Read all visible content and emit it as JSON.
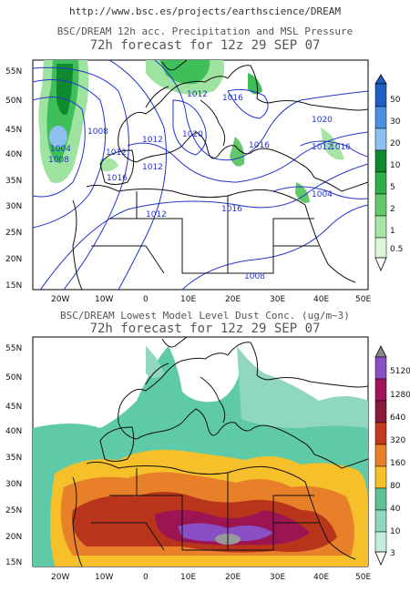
{
  "url": "http://www.bsc.es/projects/earthscience/DREAM",
  "panels": [
    {
      "id": "precip",
      "title_line1": "BSC/DREAM 12h acc. Precipitation and MSL Pressure",
      "title_line2": "72h forecast for 12z 29 SEP 07",
      "lat_labels": [
        "55N",
        "50N",
        "45N",
        "40N",
        "35N",
        "30N",
        "25N",
        "20N",
        "15N"
      ],
      "lon_labels": [
        "20W",
        "10W",
        "0",
        "10E",
        "20E",
        "30E",
        "40E",
        "50E"
      ],
      "colorbar_labels": [
        "50",
        "30",
        "20",
        "10",
        "5",
        "2",
        "1",
        "0.5"
      ],
      "colorbar_colors": [
        "#1f5fc4",
        "#4c8fe0",
        "#8ec0ef",
        "#0f8a2e",
        "#2fb04a",
        "#63c96b",
        "#a8e4a3",
        "#dff5da"
      ],
      "isobar_labels": [
        "1004",
        "1008",
        "1012",
        "1016",
        "1020",
        "1012",
        "1016",
        "1012",
        "1012",
        "1016",
        "1020",
        "1004",
        "1008",
        "1012",
        "1016",
        "1012",
        "1016",
        "1008"
      ],
      "isobar_color": "#2233cc"
    },
    {
      "id": "dust",
      "title_line1": "BSC/DREAM Lowest Model Level Dust Conc. (ug/m~3)",
      "title_line2": "72h forecast for 12z 29 SEP 07",
      "lat_labels": [
        "55N",
        "50N",
        "45N",
        "40N",
        "35N",
        "30N",
        "25N",
        "20N",
        "15N"
      ],
      "lon_labels": [
        "20W",
        "10W",
        "0",
        "10E",
        "20E",
        "30E",
        "40E",
        "50E"
      ],
      "colorbar_labels": [
        "5120",
        "1280",
        "640",
        "320",
        "160",
        "80",
        "40",
        "10",
        "3"
      ],
      "colorbar_colors": [
        "#888888",
        "#8a4fc4",
        "#a0155a",
        "#c23a1f",
        "#e8802a",
        "#f5c02a",
        "#5fbf95",
        "#8fd7c0",
        "#c4ecdf",
        "#eaf8f3"
      ]
    }
  ],
  "legend_colors": {
    "coast": "#111111",
    "precip_light": "#9fe3a0",
    "precip_mid": "#3fbf5a",
    "precip_dark": "#0f8a2e",
    "precip_blue": "#8ec0ef",
    "dust_turq": "#5fcaa8",
    "dust_yellow": "#f5c02a",
    "dust_orange": "#e8802a",
    "dust_red": "#b8351c",
    "dust_magenta": "#9c1552",
    "dust_purple": "#8a4fc4",
    "dust_gray": "#999999"
  }
}
